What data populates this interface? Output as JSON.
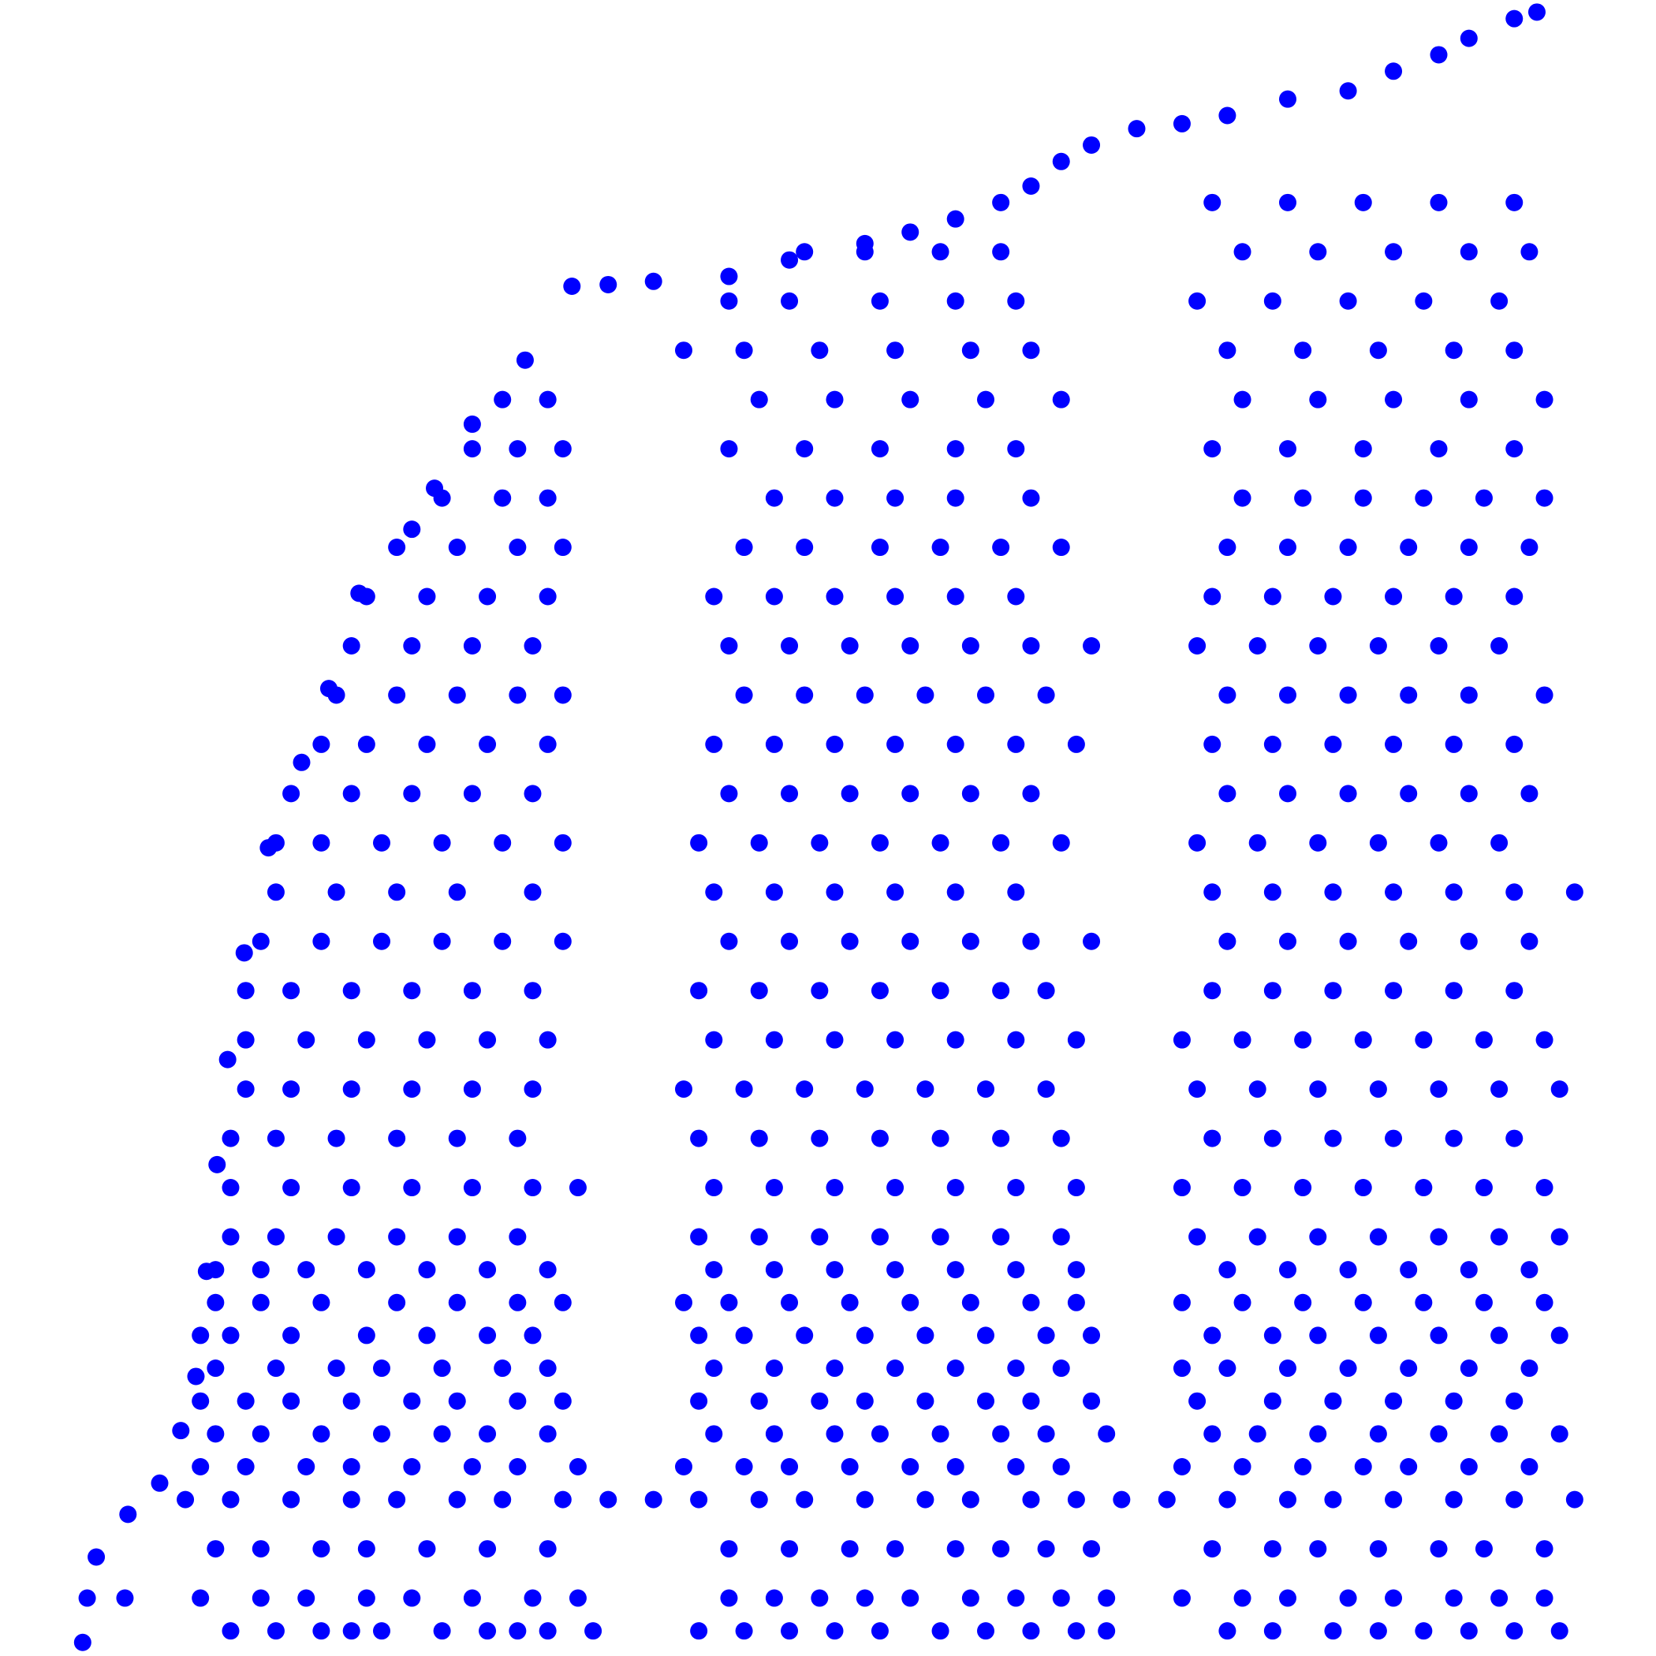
{
  "chart_data": {
    "type": "scatter",
    "color": "#0000ff",
    "xlim": [
      0,
      100
    ],
    "ylim": [
      0,
      100
    ],
    "x": [
      0.2,
      0.5,
      1.1,
      3.2,
      5.3,
      6.7,
      7.7,
      8.4,
      9.1,
      9.8,
      10.9,
      12.5,
      14.7,
      16.5,
      18.5,
      22,
      23.5,
      26,
      29.5,
      32.6,
      35,
      38,
      43,
      47,
      52,
      55,
      58,
      61,
      63,
      65,
      67,
      70,
      73,
      76,
      80,
      84,
      87,
      90,
      92,
      95,
      96.5,
      10,
      13,
      16,
      18,
      20,
      24,
      27,
      29,
      31,
      34,
      41,
      44,
      47,
      50,
      53,
      57,
      60,
      63,
      66,
      68,
      76,
      79,
      83,
      86,
      89,
      92,
      95,
      98,
      3,
      8,
      12,
      15,
      19,
      22,
      26,
      30,
      33,
      43,
      46,
      49,
      52,
      55,
      59,
      62,
      65,
      68,
      73,
      77,
      80,
      84,
      87,
      91,
      94,
      97,
      9,
      12,
      16,
      19,
      23,
      27,
      31,
      43,
      47,
      51,
      54,
      58,
      61,
      64,
      67,
      75,
      79,
      82,
      86,
      90,
      93,
      97,
      7,
      10,
      14,
      18,
      21,
      25,
      28,
      32,
      35,
      38,
      41,
      45,
      48,
      52,
      56,
      59,
      63,
      66,
      69,
      72,
      76,
      80,
      83,
      87,
      91,
      95,
      99,
      8,
      11,
      15,
      18,
      22,
      26,
      29,
      33,
      40,
      44,
      47,
      51,
      55,
      58,
      62,
      65,
      73,
      77,
      81,
      85,
      88,
      92,
      96,
      9,
      12,
      16,
      20,
      24,
      27,
      31,
      42,
      46,
      50,
      53,
      57,
      61,
      64,
      68,
      75,
      78,
      82,
      86,
      90,
      94,
      98,
      8,
      11,
      14,
      18,
      22,
      25,
      29,
      32,
      41,
      45,
      49,
      52,
      56,
      60,
      63,
      67,
      74,
      79,
      83,
      87,
      91,
      95,
      9,
      13,
      17,
      20,
      24,
      28,
      31,
      42,
      46,
      50,
      54,
      58,
      62,
      65,
      73,
      76,
      80,
      84,
      88,
      92,
      96,
      8,
      10,
      14,
      19,
      23,
      27,
      30,
      41,
      44,
      48,
      52,
      56,
      60,
      64,
      67,
      75,
      79,
      82,
      86,
      90,
      94,
      98,
      9,
      12,
      16,
      21,
      25,
      29,
      32,
      40,
      43,
      47,
      51,
      55,
      59,
      63,
      66,
      73,
      77,
      81,
      85,
      89,
      93,
      97,
      9,
      12,
      15,
      19,
      23,
      27,
      31,
      42,
      46,
      50,
      54,
      58,
      62,
      66,
      76,
      80,
      84,
      88,
      92,
      96,
      10,
      13,
      17,
      21,
      25,
      29,
      41,
      45,
      49,
      53,
      57,
      61,
      65,
      74,
      78,
      82,
      86,
      90,
      94,
      98,
      10,
      14,
      18,
      22,
      26,
      30,
      33,
      42,
      46,
      50,
      54,
      58,
      62,
      66,
      73,
      77,
      81,
      85,
      89,
      93,
      97,
      10,
      13,
      17,
      21,
      25,
      29,
      41,
      45,
      49,
      53,
      57,
      61,
      65,
      75,
      79,
      83,
      87,
      91,
      95,
      11,
      14,
      18,
      22,
      26,
      30,
      40,
      44,
      48,
      52,
      56,
      60,
      64,
      74,
      78,
      82,
      86,
      90,
      94,
      98,
      11,
      15,
      19,
      23,
      27,
      31,
      42,
      46,
      50,
      54,
      58,
      62,
      66,
      73,
      77,
      81,
      85,
      89,
      93,
      97,
      11,
      14,
      18,
      22,
      26,
      30,
      41,
      45,
      49,
      53,
      57,
      61,
      64,
      75,
      79,
      83,
      87,
      91,
      95,
      12,
      16,
      20,
      24,
      28,
      32,
      43,
      47,
      51,
      55,
      59,
      63,
      67,
      76,
      80,
      84,
      88,
      92,
      96,
      13,
      17,
      21,
      25,
      30,
      42,
      46,
      50,
      54,
      58,
      62,
      75,
      79,
      83,
      87,
      91,
      95,
      99,
      13,
      16,
      20,
      24,
      28,
      32,
      41,
      45,
      49,
      53,
      57,
      61,
      65,
      74,
      78,
      82,
      86,
      90,
      94,
      14,
      18,
      22,
      26,
      30,
      43,
      47,
      51,
      55,
      59,
      63,
      76,
      80,
      84,
      88,
      92,
      96,
      16,
      19,
      23,
      27,
      31,
      42,
      46,
      50,
      54,
      58,
      62,
      66,
      75,
      79,
      83,
      87,
      91,
      95,
      17,
      21,
      25,
      29,
      32,
      44,
      48,
      52,
      56,
      60,
      64,
      76,
      80,
      84,
      88,
      92,
      97,
      18,
      22,
      26,
      30,
      43,
      47,
      51,
      55,
      59,
      63,
      67,
      74,
      78,
      82,
      86,
      90,
      94,
      19,
      23,
      27,
      31,
      42,
      46,
      50,
      54,
      58,
      62,
      75,
      79,
      83,
      87,
      91,
      95,
      21,
      25,
      29,
      32,
      44,
      48,
      53,
      57,
      61,
      65,
      76,
      80,
      84,
      88,
      92,
      96,
      24,
      28,
      31,
      46,
      50,
      54,
      58,
      63,
      77,
      81,
      85,
      89,
      93,
      97,
      26,
      29,
      32,
      43,
      48,
      53,
      58,
      62,
      75,
      80,
      85,
      90,
      95,
      28,
      31,
      45,
      50,
      55,
      60,
      65,
      77,
      82,
      87,
      92,
      97,
      40,
      44,
      49,
      54,
      59,
      63,
      76,
      81,
      86,
      91,
      95,
      43,
      47,
      53,
      58,
      62,
      74,
      79,
      84,
      89,
      94,
      48,
      52,
      57,
      61,
      77,
      82,
      87,
      92,
      96,
      75,
      80,
      85,
      90,
      95
    ],
    "values": [
      0.3,
      3,
      5.5,
      8.1,
      10,
      13.2,
      16.5,
      22.9,
      29.4,
      35.8,
      42.3,
      48.7,
      53.9,
      58.4,
      64.2,
      68.1,
      70.6,
      74.5,
      78.4,
      82.9,
      83,
      83.2,
      83.5,
      84.5,
      85.5,
      86.2,
      87,
      88,
      89,
      90.5,
      91.5,
      92.5,
      92.8,
      93.3,
      94.3,
      94.8,
      96,
      97,
      98,
      99.2,
      99.6,
      1,
      1,
      1,
      1,
      1,
      1,
      1,
      1,
      1,
      1,
      1,
      1,
      1,
      1,
      1,
      1,
      1,
      1,
      1,
      1,
      1,
      1,
      1,
      1,
      1,
      1,
      1,
      1,
      3,
      3,
      3,
      3,
      3,
      3,
      3,
      3,
      3,
      3,
      3,
      3,
      3,
      3,
      3,
      3,
      3,
      3,
      3,
      3,
      3,
      3,
      3,
      3,
      3,
      3,
      6,
      6,
      6,
      6,
      6,
      6,
      6,
      6,
      6,
      6,
      6,
      6,
      6,
      6,
      6,
      6,
      6,
      6,
      6,
      6,
      6,
      6,
      9,
      9,
      9,
      9,
      9,
      9,
      9,
      9,
      9,
      9,
      9,
      9,
      9,
      9,
      9,
      9,
      9,
      9,
      9,
      9,
      9,
      9,
      9,
      9,
      9,
      9,
      9,
      11,
      11,
      11,
      11,
      11,
      11,
      11,
      11,
      11,
      11,
      11,
      11,
      11,
      11,
      11,
      11,
      11,
      11,
      11,
      11,
      11,
      11,
      11,
      13,
      13,
      13,
      13,
      13,
      13,
      13,
      13,
      13,
      13,
      13,
      13,
      13,
      13,
      13,
      13,
      13,
      13,
      13,
      13,
      13,
      13,
      15,
      15,
      15,
      15,
      15,
      15,
      15,
      15,
      15,
      15,
      15,
      15,
      15,
      15,
      15,
      15,
      15,
      15,
      15,
      15,
      15,
      15,
      17,
      17,
      17,
      17,
      17,
      17,
      17,
      17,
      17,
      17,
      17,
      17,
      17,
      17,
      17,
      17,
      17,
      17,
      17,
      17,
      17,
      19,
      19,
      19,
      19,
      19,
      19,
      19,
      19,
      19,
      19,
      19,
      19,
      19,
      19,
      19,
      19,
      19,
      19,
      19,
      19,
      19,
      19,
      21,
      21,
      21,
      21,
      21,
      21,
      21,
      21,
      21,
      21,
      21,
      21,
      21,
      21,
      21,
      21,
      21,
      21,
      21,
      21,
      21,
      21,
      23,
      23,
      23,
      23,
      23,
      23,
      23,
      23,
      23,
      23,
      23,
      23,
      23,
      23,
      23,
      23,
      23,
      23,
      23,
      23,
      25,
      25,
      25,
      25,
      25,
      25,
      25,
      25,
      25,
      25,
      25,
      25,
      25,
      25,
      25,
      25,
      25,
      25,
      25,
      25,
      28,
      28,
      28,
      28,
      28,
      28,
      28,
      28,
      28,
      28,
      28,
      28,
      28,
      28,
      28,
      28,
      28,
      28,
      28,
      28,
      28,
      31,
      31,
      31,
      31,
      31,
      31,
      31,
      31,
      31,
      31,
      31,
      31,
      31,
      31,
      31,
      31,
      31,
      31,
      31,
      34,
      34,
      34,
      34,
      34,
      34,
      34,
      34,
      34,
      34,
      34,
      34,
      34,
      34,
      34,
      34,
      34,
      34,
      34,
      34,
      37,
      37,
      37,
      37,
      37,
      37,
      37,
      37,
      37,
      37,
      37,
      37,
      37,
      37,
      37,
      37,
      37,
      37,
      37,
      37,
      40,
      40,
      40,
      40,
      40,
      40,
      40,
      40,
      40,
      40,
      40,
      40,
      40,
      40,
      40,
      40,
      40,
      40,
      40,
      43,
      43,
      43,
      43,
      43,
      43,
      43,
      43,
      43,
      43,
      43,
      43,
      43,
      43,
      43,
      43,
      43,
      43,
      43,
      46,
      46,
      46,
      46,
      46,
      46,
      46,
      46,
      46,
      46,
      46,
      46,
      46,
      46,
      46,
      46,
      46,
      46,
      49,
      49,
      49,
      49,
      49,
      49,
      49,
      49,
      49,
      49,
      49,
      49,
      49,
      49,
      49,
      49,
      49,
      49,
      49,
      52,
      52,
      52,
      52,
      52,
      52,
      52,
      52,
      52,
      52,
      52,
      52,
      52,
      52,
      52,
      52,
      52,
      55,
      55,
      55,
      55,
      55,
      55,
      55,
      55,
      55,
      55,
      55,
      55,
      55,
      55,
      55,
      55,
      55,
      55,
      58,
      58,
      58,
      58,
      58,
      58,
      58,
      58,
      58,
      58,
      58,
      58,
      58,
      58,
      58,
      58,
      58,
      61,
      61,
      61,
      61,
      61,
      61,
      61,
      61,
      61,
      61,
      61,
      61,
      61,
      61,
      61,
      61,
      61,
      64,
      64,
      64,
      64,
      64,
      64,
      64,
      64,
      64,
      64,
      64,
      64,
      64,
      64,
      64,
      64,
      67,
      67,
      67,
      67,
      67,
      67,
      67,
      67,
      67,
      67,
      67,
      67,
      67,
      67,
      67,
      67,
      70,
      70,
      70,
      70,
      70,
      70,
      70,
      70,
      70,
      70,
      70,
      70,
      70,
      70,
      73,
      73,
      73,
      73,
      73,
      73,
      73,
      73,
      73,
      73,
      73,
      73,
      73,
      76,
      76,
      76,
      76,
      76,
      76,
      76,
      76,
      76,
      76,
      76,
      76,
      79,
      79,
      79,
      79,
      79,
      79,
      79,
      79,
      79,
      79,
      79,
      82,
      82,
      82,
      82,
      82,
      82,
      82,
      82,
      82,
      82,
      85,
      85,
      85,
      85,
      85,
      85,
      85,
      85,
      85,
      88,
      88,
      88,
      88,
      88
    ]
  }
}
